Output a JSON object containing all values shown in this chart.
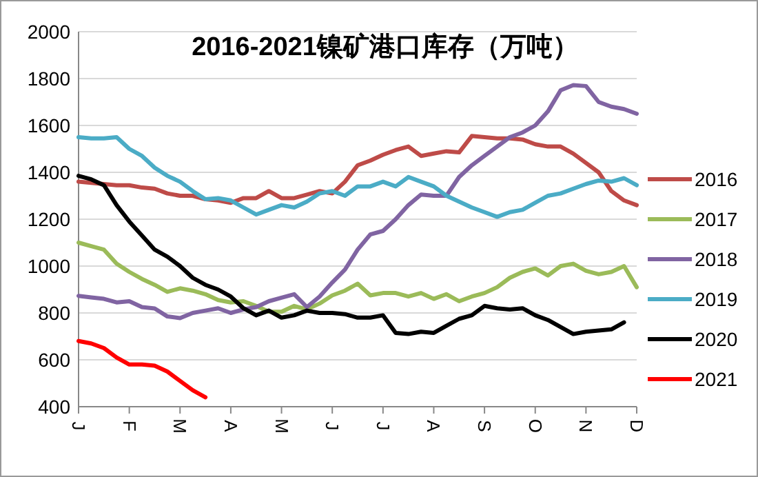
{
  "chart_data": {
    "type": "line",
    "title": "2016-2021镍矿港口库存（万吨）",
    "categories": [
      "J",
      null,
      null,
      null,
      "F",
      null,
      null,
      null,
      "M",
      null,
      null,
      null,
      "A",
      null,
      null,
      null,
      "M",
      null,
      null,
      null,
      "J",
      null,
      null,
      null,
      "J",
      null,
      null,
      null,
      "A",
      null,
      null,
      null,
      "S",
      null,
      null,
      null,
      "O",
      null,
      null,
      null,
      "N",
      null,
      null,
      null,
      "D"
    ],
    "series": [
      {
        "name": "2016",
        "color": "#be4b48",
        "values": [
          1360,
          1355,
          1350,
          1345,
          1345,
          1335,
          1330,
          1310,
          1300,
          1300,
          1285,
          1280,
          1270,
          1290,
          1290,
          1320,
          1290,
          1290,
          1305,
          1320,
          1310,
          1360,
          1430,
          1450,
          1475,
          1495,
          1510,
          1470,
          1480,
          1490,
          1485,
          1555,
          1550,
          1545,
          1545,
          1540,
          1520,
          1510,
          1510,
          1480,
          1440,
          1400,
          1320,
          1280,
          1260
        ]
      },
      {
        "name": "2017",
        "color": "#9bbb59",
        "values": [
          1100,
          1085,
          1070,
          1010,
          975,
          945,
          920,
          890,
          905,
          895,
          880,
          855,
          845,
          850,
          830,
          805,
          805,
          830,
          815,
          840,
          875,
          895,
          925,
          875,
          885,
          885,
          870,
          885,
          860,
          880,
          850,
          870,
          885,
          910,
          950,
          975,
          990,
          960,
          1000,
          1010,
          980,
          965,
          975,
          1000,
          910
        ]
      },
      {
        "name": "2018",
        "color": "#8064a2",
        "values": [
          873,
          866,
          860,
          845,
          850,
          825,
          819,
          785,
          778,
          800,
          810,
          820,
          800,
          815,
          825,
          850,
          865,
          880,
          825,
          870,
          930,
          985,
          1070,
          1135,
          1150,
          1200,
          1260,
          1305,
          1300,
          1300,
          1380,
          1430,
          1470,
          1510,
          1550,
          1570,
          1600,
          1660,
          1750,
          1772,
          1768,
          1700,
          1680,
          1670,
          1650
        ]
      },
      {
        "name": "2019",
        "color": "#4bacc6",
        "values": [
          1550,
          1545,
          1545,
          1550,
          1500,
          1470,
          1420,
          1385,
          1360,
          1320,
          1285,
          1290,
          1280,
          1250,
          1220,
          1240,
          1260,
          1250,
          1275,
          1310,
          1320,
          1300,
          1340,
          1340,
          1360,
          1340,
          1380,
          1360,
          1340,
          1300,
          1275,
          1250,
          1230,
          1210,
          1230,
          1240,
          1270,
          1300,
          1310,
          1330,
          1350,
          1365,
          1360,
          1375,
          1345
        ]
      },
      {
        "name": "2020",
        "color": "#000000",
        "values": [
          1385,
          1370,
          1345,
          1260,
          1190,
          1130,
          1070,
          1040,
          1000,
          950,
          920,
          900,
          870,
          820,
          790,
          810,
          780,
          790,
          810,
          800,
          800,
          795,
          780,
          780,
          790,
          715,
          710,
          720,
          715,
          745,
          775,
          790,
          830,
          820,
          815,
          820,
          790,
          770,
          740,
          710,
          720,
          725,
          730,
          760,
          null
        ]
      },
      {
        "name": "2021",
        "color": "#ff0000",
        "values": [
          680,
          670,
          650,
          610,
          580,
          580,
          575,
          550,
          510,
          470,
          440,
          null,
          null,
          null,
          null,
          null,
          null,
          null,
          null,
          null,
          null,
          null,
          null,
          null,
          null,
          null,
          null,
          null,
          null,
          null,
          null,
          null,
          null,
          null,
          null,
          null,
          null,
          null,
          null,
          null,
          null,
          null,
          null,
          null,
          null
        ]
      }
    ],
    "ylim": [
      400,
      2000
    ],
    "yticks": [
      400,
      600,
      800,
      1000,
      1200,
      1400,
      1600,
      1800,
      2000
    ],
    "grid": "y",
    "legend": "right"
  }
}
